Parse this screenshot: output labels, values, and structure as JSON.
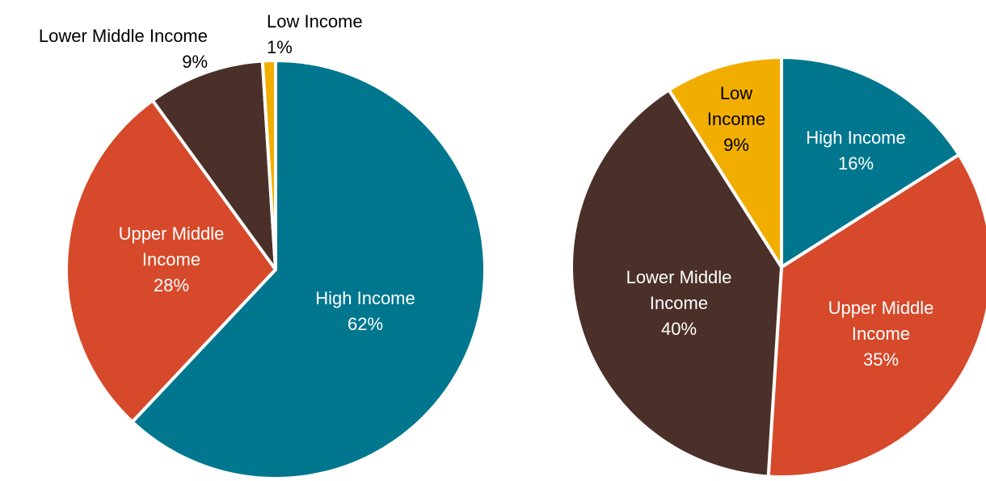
{
  "chart_data": [
    {
      "type": "pie",
      "start_angle": 0,
      "slices": [
        {
          "label": "High Income",
          "value": 62,
          "pct_label": "62%",
          "color": "#00778F",
          "text_color": "#ffffff"
        },
        {
          "label": "Upper Middle Income",
          "value": 28,
          "pct_label": "28%",
          "color": "#D6492A",
          "text_color": "#ffffff"
        },
        {
          "label": "Lower Middle Income",
          "value": 9,
          "pct_label": "9%",
          "color": "#4A3028",
          "text_color": "#000000"
        },
        {
          "label": "Low Income",
          "value": 1,
          "pct_label": "1%",
          "color": "#F2AE00",
          "text_color": "#000000"
        }
      ]
    },
    {
      "type": "pie",
      "start_angle": 0,
      "slices": [
        {
          "label": "High Income",
          "value": 16,
          "pct_label": "16%",
          "color": "#00778F",
          "text_color": "#ffffff"
        },
        {
          "label": "Upper Middle Income",
          "value": 35,
          "pct_label": "35%",
          "color": "#D6492A",
          "text_color": "#ffffff"
        },
        {
          "label": "Lower Middle Income",
          "value": 40,
          "pct_label": "40%",
          "color": "#4A3028",
          "text_color": "#ffffff"
        },
        {
          "label": "Low Income",
          "value": 9,
          "pct_label": "9%",
          "color": "#F2AE00",
          "text_color": "#000000"
        }
      ]
    }
  ]
}
